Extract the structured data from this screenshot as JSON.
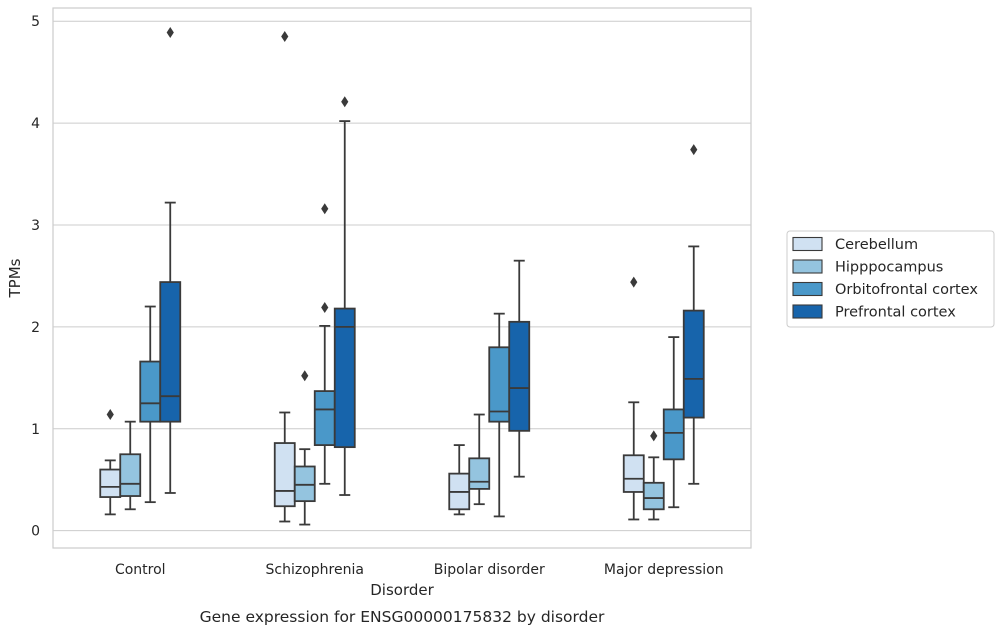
{
  "chart_data": {
    "type": "box",
    "xlabel": "Disorder",
    "ylabel": "TPMs",
    "caption": "Gene expression for ENSG00000175832 by disorder",
    "ylim": [
      -0.17,
      5.13
    ],
    "yticks": [
      0,
      1,
      2,
      3,
      4,
      5
    ],
    "grid": "horizontal",
    "legend_position": "right",
    "categories": [
      "Control",
      "Schizophrenia",
      "Bipolar disorder",
      "Major depression"
    ],
    "series": [
      {
        "name": "Cerebellum",
        "color": "#d0e1f2",
        "boxes": [
          {
            "whisker_low": 0.16,
            "q1": 0.33,
            "median": 0.43,
            "q3": 0.6,
            "whisker_high": 0.69,
            "outliers": [
              1.14
            ]
          },
          {
            "whisker_low": 0.09,
            "q1": 0.24,
            "median": 0.39,
            "q3": 0.86,
            "whisker_high": 1.16,
            "outliers": [
              4.85
            ]
          },
          {
            "whisker_low": 0.16,
            "q1": 0.21,
            "median": 0.38,
            "q3": 0.56,
            "whisker_high": 0.84,
            "outliers": []
          },
          {
            "whisker_low": 0.11,
            "q1": 0.38,
            "median": 0.51,
            "q3": 0.74,
            "whisker_high": 1.26,
            "outliers": [
              2.44
            ]
          }
        ]
      },
      {
        "name": "Hipppocampus",
        "color": "#94c4df",
        "boxes": [
          {
            "whisker_low": 0.21,
            "q1": 0.34,
            "median": 0.46,
            "q3": 0.75,
            "whisker_high": 1.07,
            "outliers": []
          },
          {
            "whisker_low": 0.06,
            "q1": 0.29,
            "median": 0.45,
            "q3": 0.63,
            "whisker_high": 0.8,
            "outliers": [
              1.52
            ]
          },
          {
            "whisker_low": 0.26,
            "q1": 0.41,
            "median": 0.48,
            "q3": 0.71,
            "whisker_high": 1.14,
            "outliers": []
          },
          {
            "whisker_low": 0.11,
            "q1": 0.21,
            "median": 0.32,
            "q3": 0.47,
            "whisker_high": 0.72,
            "outliers": [
              0.93
            ]
          }
        ]
      },
      {
        "name": "Orbitofrontal cortex",
        "color": "#4a98c9",
        "boxes": [
          {
            "whisker_low": 0.28,
            "q1": 1.07,
            "median": 1.25,
            "q3": 1.66,
            "whisker_high": 2.2,
            "outliers": []
          },
          {
            "whisker_low": 0.46,
            "q1": 0.84,
            "median": 1.19,
            "q3": 1.37,
            "whisker_high": 2.01,
            "outliers": [
              2.19,
              3.16
            ]
          },
          {
            "whisker_low": 0.14,
            "q1": 1.07,
            "median": 1.17,
            "q3": 1.8,
            "whisker_high": 2.13,
            "outliers": []
          },
          {
            "whisker_low": 0.23,
            "q1": 0.7,
            "median": 0.96,
            "q3": 1.19,
            "whisker_high": 1.9,
            "outliers": []
          }
        ]
      },
      {
        "name": "Prefrontal cortex",
        "color": "#1764ab",
        "boxes": [
          {
            "whisker_low": 0.37,
            "q1": 1.07,
            "median": 1.32,
            "q3": 2.44,
            "whisker_high": 3.22,
            "outliers": [
              4.89
            ]
          },
          {
            "whisker_low": 0.35,
            "q1": 0.82,
            "median": 2.0,
            "q3": 2.18,
            "whisker_high": 4.02,
            "outliers": [
              4.21
            ]
          },
          {
            "whisker_low": 0.53,
            "q1": 0.98,
            "median": 1.4,
            "q3": 2.05,
            "whisker_high": 2.65,
            "outliers": []
          },
          {
            "whisker_low": 0.46,
            "q1": 1.11,
            "median": 1.49,
            "q3": 2.16,
            "whisker_high": 2.79,
            "outliers": [
              3.74
            ]
          }
        ]
      }
    ]
  }
}
